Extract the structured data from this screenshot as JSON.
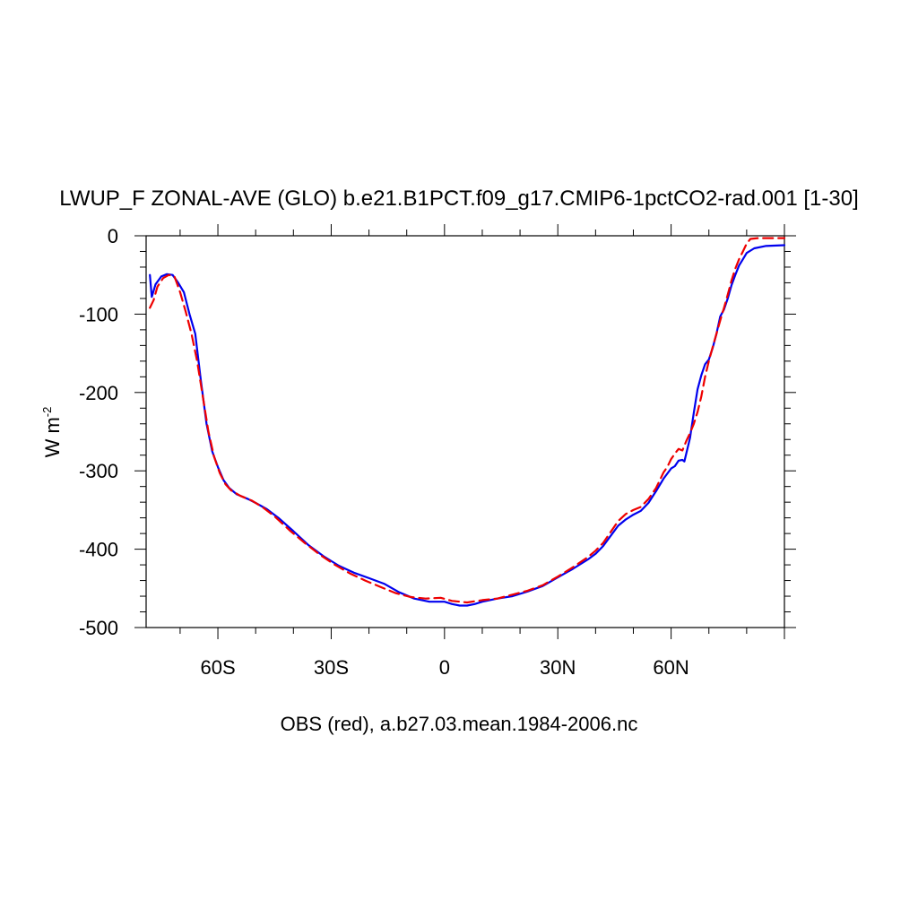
{
  "chart_data": {
    "type": "line",
    "title": "LWUP_F ZONAL-AVE (GLO) b.e21.B1PCT.f09_g17.CMIP6-1pctCO2-rad.001 [1-30]",
    "xlabel": "OBS (red), a.b27.03.mean.1984-2006.nc",
    "ylabel_main": "W m",
    "ylabel_sup": "-2",
    "xlim": [
      -79,
      90
    ],
    "ylim": [
      -500,
      0
    ],
    "grid": false,
    "x_ticks": [
      {
        "value": -60,
        "label": "60S"
      },
      {
        "value": -30,
        "label": "30S"
      },
      {
        "value": 0,
        "label": "0"
      },
      {
        "value": 30,
        "label": "30N"
      },
      {
        "value": 60,
        "label": "60N"
      }
    ],
    "y_ticks": [
      {
        "value": 0,
        "label": "0"
      },
      {
        "value": -100,
        "label": "-100"
      },
      {
        "value": -200,
        "label": "-200"
      },
      {
        "value": -300,
        "label": "-300"
      },
      {
        "value": -400,
        "label": "-400"
      },
      {
        "value": -500,
        "label": "-500"
      }
    ],
    "series": [
      {
        "color": "#0000ee",
        "dash": "solid",
        "points": [
          [
            -78,
            -50
          ],
          [
            -77.5,
            -78
          ],
          [
            -76.5,
            -62
          ],
          [
            -75,
            -52
          ],
          [
            -73.5,
            -49
          ],
          [
            -72,
            -50
          ],
          [
            -70.5,
            -60
          ],
          [
            -69,
            -72
          ],
          [
            -67.5,
            -100
          ],
          [
            -66,
            -125
          ],
          [
            -64.5,
            -185
          ],
          [
            -63,
            -240
          ],
          [
            -61.5,
            -275
          ],
          [
            -60,
            -295
          ],
          [
            -58.5,
            -312
          ],
          [
            -57,
            -322
          ],
          [
            -55,
            -330
          ],
          [
            -52,
            -336
          ],
          [
            -50,
            -341
          ],
          [
            -47,
            -349
          ],
          [
            -44,
            -360
          ],
          [
            -40,
            -377
          ],
          [
            -36,
            -395
          ],
          [
            -32,
            -409
          ],
          [
            -28,
            -421
          ],
          [
            -24,
            -430
          ],
          [
            -20,
            -437
          ],
          [
            -16,
            -444
          ],
          [
            -12,
            -455
          ],
          [
            -8,
            -463
          ],
          [
            -4,
            -467
          ],
          [
            0,
            -467
          ],
          [
            2,
            -470
          ],
          [
            4,
            -472
          ],
          [
            6,
            -472
          ],
          [
            8,
            -470
          ],
          [
            10,
            -467
          ],
          [
            14,
            -463
          ],
          [
            18,
            -460
          ],
          [
            22,
            -454
          ],
          [
            26,
            -447
          ],
          [
            30,
            -436
          ],
          [
            34,
            -425
          ],
          [
            38,
            -413
          ],
          [
            40,
            -406
          ],
          [
            42,
            -396
          ],
          [
            44,
            -383
          ],
          [
            46,
            -370
          ],
          [
            48,
            -362
          ],
          [
            50,
            -356
          ],
          [
            52,
            -351
          ],
          [
            54,
            -341
          ],
          [
            56,
            -326
          ],
          [
            58,
            -310
          ],
          [
            60,
            -297
          ],
          [
            61,
            -294
          ],
          [
            62,
            -287
          ],
          [
            63,
            -286
          ],
          [
            63.5,
            -288
          ],
          [
            64,
            -278
          ],
          [
            65,
            -258
          ],
          [
            66,
            -226
          ],
          [
            67,
            -196
          ],
          [
            68,
            -178
          ],
          [
            69,
            -164
          ],
          [
            70,
            -158
          ],
          [
            71,
            -143
          ],
          [
            72,
            -125
          ],
          [
            73,
            -103
          ],
          [
            74,
            -94
          ],
          [
            75,
            -80
          ],
          [
            76,
            -63
          ],
          [
            77,
            -50
          ],
          [
            78,
            -38
          ],
          [
            79,
            -30
          ],
          [
            80,
            -22
          ],
          [
            82,
            -16
          ],
          [
            85,
            -13
          ],
          [
            90,
            -12
          ]
        ]
      },
      {
        "color": "#ee0000",
        "dash": "dashed",
        "points": [
          [
            -78,
            -92
          ],
          [
            -77,
            -82
          ],
          [
            -76,
            -65
          ],
          [
            -74.5,
            -54
          ],
          [
            -73,
            -50
          ],
          [
            -71.5,
            -52
          ],
          [
            -70,
            -72
          ],
          [
            -68.5,
            -97
          ],
          [
            -67,
            -125
          ],
          [
            -65.5,
            -160
          ],
          [
            -64,
            -205
          ],
          [
            -62.5,
            -250
          ],
          [
            -61,
            -282
          ],
          [
            -59.5,
            -303
          ],
          [
            -58,
            -317
          ],
          [
            -56.5,
            -325
          ],
          [
            -54,
            -332
          ],
          [
            -51,
            -338
          ],
          [
            -48,
            -347
          ],
          [
            -45,
            -358
          ],
          [
            -41,
            -376
          ],
          [
            -37,
            -392
          ],
          [
            -33,
            -407
          ],
          [
            -29,
            -420
          ],
          [
            -25,
            -431
          ],
          [
            -21,
            -440
          ],
          [
            -17,
            -448
          ],
          [
            -13,
            -456
          ],
          [
            -9,
            -461
          ],
          [
            -5,
            -463
          ],
          [
            -1,
            -462
          ],
          [
            2,
            -466
          ],
          [
            6,
            -468
          ],
          [
            10,
            -465
          ],
          [
            14,
            -463
          ],
          [
            18,
            -458
          ],
          [
            22,
            -453
          ],
          [
            26,
            -446
          ],
          [
            30,
            -435
          ],
          [
            34,
            -423
          ],
          [
            38,
            -410
          ],
          [
            40,
            -402
          ],
          [
            42,
            -392
          ],
          [
            44,
            -378
          ],
          [
            46,
            -364
          ],
          [
            48,
            -355
          ],
          [
            50,
            -350
          ],
          [
            52,
            -346
          ],
          [
            54,
            -336
          ],
          [
            56,
            -322
          ],
          [
            58,
            -302
          ],
          [
            59,
            -295
          ],
          [
            60,
            -285
          ],
          [
            61,
            -278
          ],
          [
            62,
            -272
          ],
          [
            63,
            -274
          ],
          [
            64,
            -262
          ],
          [
            65,
            -252
          ],
          [
            66,
            -240
          ],
          [
            67,
            -225
          ],
          [
            68,
            -205
          ],
          [
            69,
            -180
          ],
          [
            70,
            -160
          ],
          [
            71,
            -142
          ],
          [
            72,
            -125
          ],
          [
            73,
            -108
          ],
          [
            74,
            -92
          ],
          [
            75,
            -75
          ],
          [
            76,
            -57
          ],
          [
            77,
            -42
          ],
          [
            78,
            -30
          ],
          [
            79,
            -20
          ],
          [
            80,
            -10
          ],
          [
            81,
            -4
          ],
          [
            83,
            -3
          ],
          [
            90,
            -3
          ]
        ]
      }
    ]
  }
}
